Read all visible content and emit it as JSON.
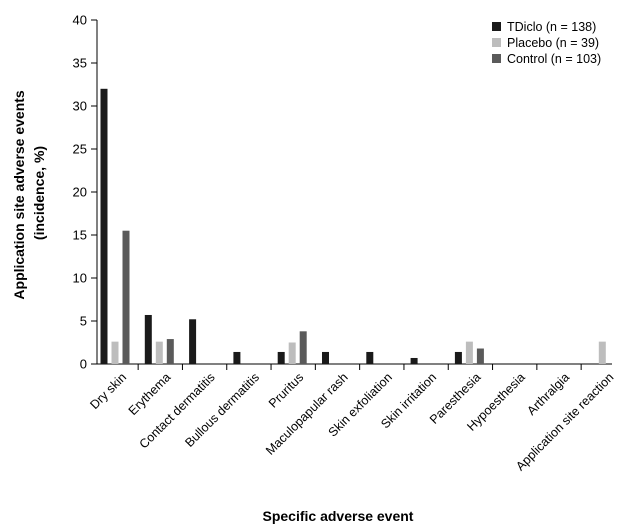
{
  "chart_data": {
    "type": "bar",
    "title": "",
    "xlabel": "Specific adverse event",
    "ylabel_line1": "Application site adverse events",
    "ylabel_line2": "(incidence, %)",
    "ylim": [
      0,
      40
    ],
    "yticks": [
      0,
      5,
      10,
      15,
      20,
      25,
      30,
      35,
      40
    ],
    "grid": false,
    "legend_position": "top-right",
    "categories": [
      "Dry skin",
      "Erythema",
      "Contact dermatitis",
      "Bullous dermatitis",
      "Pruritus",
      "Maculopapular rash",
      "Skin exfoliation",
      "Skin irritation",
      "Paresthesia",
      "Hypoesthesia",
      "Arthralgia",
      "Application site reaction"
    ],
    "series": [
      {
        "name": "TDiclo (n = 138)",
        "color": "#1a1a1a",
        "values": [
          32.0,
          5.7,
          5.2,
          1.4,
          1.4,
          1.4,
          1.4,
          0.7,
          1.4,
          0,
          0,
          0
        ]
      },
      {
        "name": "Placebo (n = 39)",
        "color": "#bdbdbd",
        "values": [
          2.6,
          2.6,
          0,
          0,
          2.5,
          0,
          0,
          0,
          2.6,
          0,
          0,
          2.6
        ]
      },
      {
        "name": "Control (n = 103)",
        "color": "#5a5a5a",
        "values": [
          15.5,
          2.9,
          0,
          0,
          3.8,
          0,
          0,
          0,
          1.8,
          0,
          0,
          0
        ]
      }
    ]
  }
}
